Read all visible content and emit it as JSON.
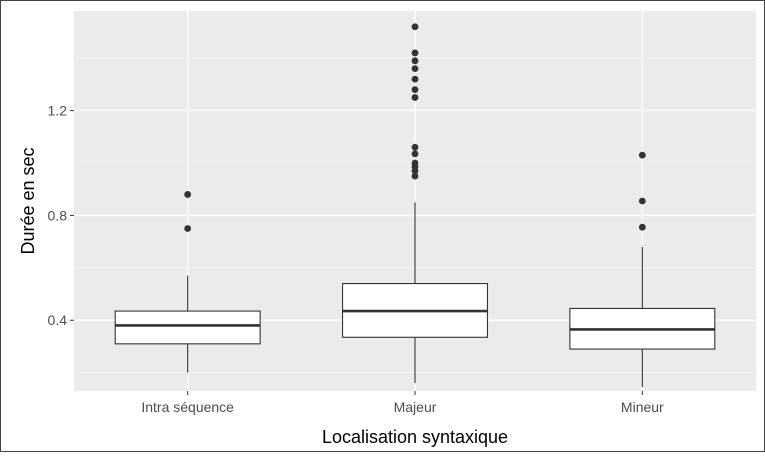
{
  "chart_data": {
    "type": "boxplot",
    "xlabel": "Localisation syntaxique",
    "ylabel": "Durée en sec",
    "ylim": [
      0.13,
      1.58
    ],
    "yticks": [
      0.4,
      0.8,
      1.2
    ],
    "ytick_labels": [
      "0.4",
      "0.8",
      "1.2"
    ],
    "grid": true,
    "categories": [
      "Intra séquence",
      "Majeur",
      "Mineur"
    ],
    "boxes": [
      {
        "category": "Intra séquence",
        "q1": 0.31,
        "median": 0.38,
        "q3": 0.435,
        "whisker_low": 0.2,
        "whisker_high": 0.57,
        "outliers": [
          0.75,
          0.88
        ]
      },
      {
        "category": "Majeur",
        "q1": 0.335,
        "median": 0.435,
        "q3": 0.54,
        "whisker_low": 0.16,
        "whisker_high": 0.85,
        "outliers": [
          0.95,
          0.97,
          0.985,
          1.0,
          1.035,
          1.06,
          1.25,
          1.28,
          1.32,
          1.36,
          1.39,
          1.42,
          1.52
        ]
      },
      {
        "category": "Mineur",
        "q1": 0.29,
        "median": 0.365,
        "q3": 0.445,
        "whisker_low": 0.145,
        "whisker_high": 0.68,
        "outliers": [
          0.755,
          0.855,
          1.03
        ]
      }
    ],
    "colors": {
      "panel_background": "#ebebeb",
      "grid_major": "#ffffff",
      "grid_minor": "#f5f5f5",
      "box_fill": "#ffffff",
      "box_stroke": "#333333",
      "outlier": "#333333"
    }
  }
}
